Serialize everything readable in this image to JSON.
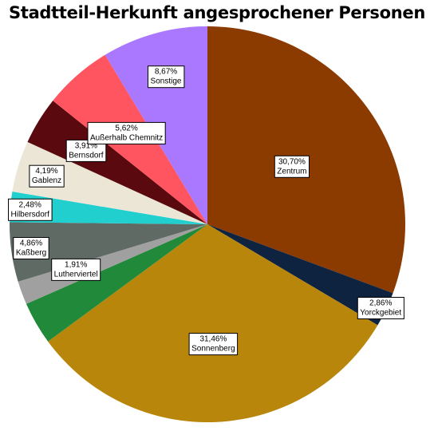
{
  "chart_data": {
    "type": "pie",
    "title": "Stadtteil-Herkunft angesprochener Personen",
    "slices": [
      {
        "label": "Zentrum",
        "value": 30.7,
        "value_text": "30,70%",
        "color": "#8B3A00"
      },
      {
        "label": "Yorckgebiet",
        "value": 2.86,
        "value_text": "2,86%",
        "color": "#0D2340"
      },
      {
        "label": "Sonnenberg",
        "value": 31.46,
        "value_text": "31,46%",
        "color": "#B8860B"
      },
      {
        "label": "Luther-Viertel",
        "value": 3.5,
        "value_text": "",
        "color": "#218A3A"
      },
      {
        "label": "Lutherviertel",
        "value": 1.91,
        "value_text": "1,91%",
        "color": "#A0A0A0"
      },
      {
        "label": "Kaßberg",
        "value": 4.86,
        "value_text": "4,86%",
        "color": "#5F6A64"
      },
      {
        "label": "Hilbersdorf",
        "value": 2.48,
        "value_text": "2,48%",
        "color": "#22CFCF"
      },
      {
        "label": "Gablenz",
        "value": 4.19,
        "value_text": "4,19%",
        "color": "#ECE6D6"
      },
      {
        "label": "Bernsdorf",
        "value": 3.91,
        "value_text": "3,91%",
        "color": "#5A0A0F"
      },
      {
        "label": "Außerhalb Chemnitz",
        "value": 5.62,
        "value_text": "5,62%",
        "color": "#FF5560"
      },
      {
        "label": "Sonstige",
        "value": 8.67,
        "value_text": "8,67%",
        "color": "#AA77FF"
      }
    ]
  }
}
